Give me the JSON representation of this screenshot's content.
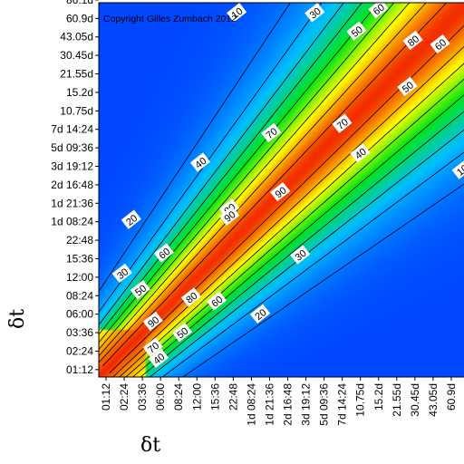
{
  "chart_data": {
    "type": "heatmap",
    "title": "",
    "copyright": "Copyright Gilles Zumbach 2012",
    "xlabel": "δt",
    "ylabel": "δt",
    "ticks": [
      "01:12",
      "02:24",
      "03:36",
      "06:00",
      "08:24",
      "12:00",
      "15:36",
      "22:48",
      "1d 08:24",
      "1d 21:36",
      "2d 16:48",
      "3d 19:12",
      "5d 09:36",
      "7d 14:24",
      "10.75d",
      "15.2d",
      "21.55d",
      "30.45d",
      "43.05d",
      "60.9d",
      "86.1d"
    ],
    "y_ticks": [
      "01:12",
      "02:24",
      "03:36",
      "06:00",
      "08:24",
      "12:00",
      "15:36",
      "22:48",
      "1d 08:24",
      "1d 21:36",
      "2d 16:48",
      "3d 19:12",
      "5d 09:36",
      "7d 14:24",
      "10.75d",
      "15.2d",
      "21.55d",
      "30.45d",
      "43.05d",
      "60.9d",
      "86.1d"
    ],
    "x_ticks": [
      "01:12",
      "02:24",
      "03:36",
      "06:00",
      "08:24",
      "12:00",
      "15:36",
      "22:48",
      "1d 08:24",
      "1d 21:36",
      "2d 16:48",
      "3d 19:12",
      "5d 09:36",
      "7d 14:24",
      "10.75d",
      "15.2d",
      "21.55d",
      "30.45d",
      "43.05d",
      "60.9d",
      "86.1d"
    ],
    "value_range": [
      0,
      100
    ],
    "contour_levels": [
      10,
      20,
      30,
      40,
      50,
      60,
      70,
      80,
      90
    ],
    "colormap": [
      "#0050ff",
      "#00c8ff",
      "#00ff00",
      "#ffff00",
      "#ff0000"
    ],
    "contour_labels": [
      {
        "text": "10",
        "x": 7.2,
        "y": 19.3
      },
      {
        "text": "30",
        "x": 11.5,
        "y": 19.3
      },
      {
        "text": "60",
        "x": 15.0,
        "y": 19.5
      },
      {
        "text": "50",
        "x": 13.8,
        "y": 18.3
      },
      {
        "text": "80",
        "x": 16.9,
        "y": 17.8
      },
      {
        "text": "60",
        "x": 18.4,
        "y": 17.6
      },
      {
        "text": "50",
        "x": 16.6,
        "y": 15.3
      },
      {
        "text": "70",
        "x": 9.1,
        "y": 12.8
      },
      {
        "text": "70",
        "x": 13.0,
        "y": 13.3
      },
      {
        "text": "40",
        "x": 5.2,
        "y": 11.2
      },
      {
        "text": "40",
        "x": 14.0,
        "y": 11.7
      },
      {
        "text": "10",
        "x": 19.6,
        "y": 10.8
      },
      {
        "text": "90",
        "x": 9.6,
        "y": 9.6
      },
      {
        "text": "80",
        "x": 6.8,
        "y": 8.7
      },
      {
        "text": "90",
        "x": 6.8,
        "y": 8.3
      },
      {
        "text": "20",
        "x": 1.4,
        "y": 8.1
      },
      {
        "text": "60",
        "x": 3.2,
        "y": 6.3
      },
      {
        "text": "30",
        "x": 10.7,
        "y": 6.2
      },
      {
        "text": "30",
        "x": 0.9,
        "y": 5.2
      },
      {
        "text": "50",
        "x": 1.9,
        "y": 4.3
      },
      {
        "text": "80",
        "x": 4.7,
        "y": 3.9
      },
      {
        "text": "60",
        "x": 6.1,
        "y": 3.7
      },
      {
        "text": "20",
        "x": 8.5,
        "y": 3.0
      },
      {
        "text": "90",
        "x": 2.6,
        "y": 2.6
      },
      {
        "text": "50",
        "x": 4.2,
        "y": 2.0
      },
      {
        "text": "70",
        "x": 2.6,
        "y": 1.2
      },
      {
        "text": "40",
        "x": 2.9,
        "y": 0.6
      }
    ]
  }
}
